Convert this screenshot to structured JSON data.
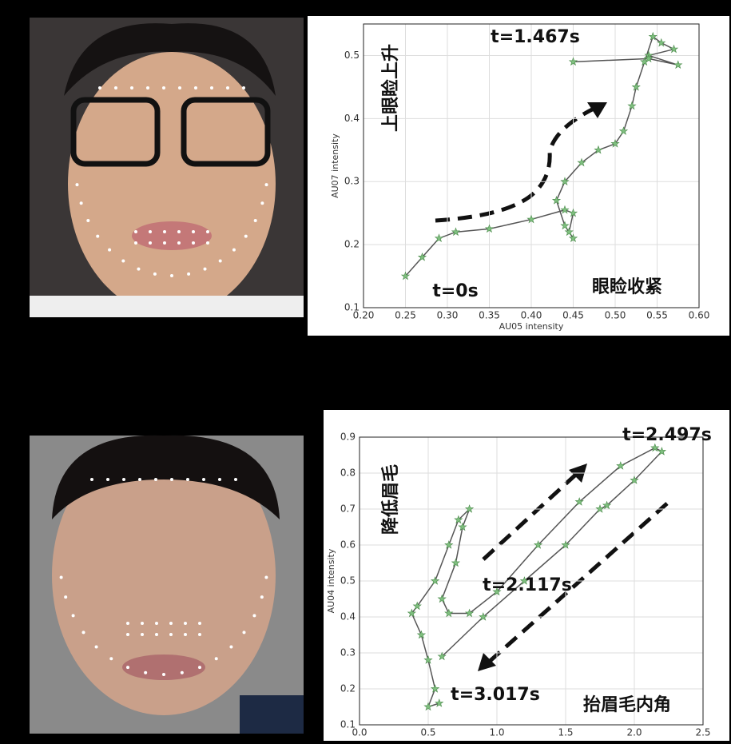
{
  "chart_data": [
    {
      "type": "line",
      "xlabel": "AU05 intensity",
      "ylabel": "AU07 intensity",
      "xlim": [
        0.2,
        0.6
      ],
      "ylim": [
        0.1,
        0.55
      ],
      "xticks": [
        {
          "value": 0.2,
          "label": "0.20"
        },
        0.25,
        {
          "value": 0.3,
          "label": "0.30"
        },
        0.35,
        {
          "value": 0.4,
          "label": "0.40"
        },
        0.45,
        {
          "value": 0.5,
          "label": "0.50"
        },
        0.55,
        {
          "value": 0.6,
          "label": "0.60"
        }
      ],
      "yticks": [
        0.1,
        0.2,
        0.3,
        0.4,
        0.5
      ],
      "grid": true,
      "line_color": "#555555",
      "marker_color": "#7fbf7f",
      "annotations": [
        "t=1.467s",
        "t=0s",
        "眼睑收紧",
        "上眼睑上升"
      ],
      "x": [
        0.25,
        0.27,
        0.29,
        0.31,
        0.35,
        0.4,
        0.44,
        0.45,
        0.445,
        0.45,
        0.44,
        0.43,
        0.44,
        0.46,
        0.48,
        0.5,
        0.51,
        0.52,
        0.525,
        0.535,
        0.545,
        0.555,
        0.57,
        0.54,
        0.575,
        0.54,
        0.45
      ],
      "y": [
        0.15,
        0.18,
        0.21,
        0.22,
        0.225,
        0.24,
        0.255,
        0.25,
        0.22,
        0.21,
        0.23,
        0.27,
        0.3,
        0.33,
        0.35,
        0.36,
        0.38,
        0.42,
        0.45,
        0.49,
        0.53,
        0.52,
        0.51,
        0.5,
        0.485,
        0.495,
        0.49
      ]
    },
    {
      "type": "line",
      "ylabel": "AU04 intensity",
      "xlim": [
        0,
        2.5
      ],
      "ylim": [
        0.1,
        0.9
      ],
      "xticks": [
        {
          "value": 0,
          "label": "0.0"
        },
        0.5,
        {
          "value": 1,
          "label": "1.0"
        },
        1.5,
        {
          "value": 2,
          "label": "2.0"
        },
        2.5
      ],
      "yticks": [
        0.1,
        0.2,
        0.3,
        0.4,
        0.5,
        0.6,
        0.7,
        0.8,
        0.9
      ],
      "grid": true,
      "line_color": "#555555",
      "marker_color": "#7fbf7f",
      "annotations": [
        "t=2.497s",
        "t=2.117s",
        "t=3.017s",
        "降低眉毛",
        "抬眉毛内角"
      ],
      "x": [
        0.6,
        0.9,
        1.2,
        1.5,
        1.75,
        1.8,
        2.0,
        2.2,
        2.15,
        1.9,
        1.6,
        1.3,
        1.0,
        0.8,
        0.65,
        0.6,
        0.7,
        0.75,
        0.8,
        0.72,
        0.65,
        0.55,
        0.42,
        0.38,
        0.45,
        0.5,
        0.55,
        0.5,
        0.58
      ],
      "y": [
        0.29,
        0.4,
        0.5,
        0.6,
        0.7,
        0.71,
        0.78,
        0.86,
        0.87,
        0.82,
        0.72,
        0.6,
        0.47,
        0.41,
        0.41,
        0.45,
        0.55,
        0.65,
        0.7,
        0.67,
        0.6,
        0.5,
        0.43,
        0.41,
        0.35,
        0.28,
        0.2,
        0.15,
        0.16
      ]
    }
  ]
}
